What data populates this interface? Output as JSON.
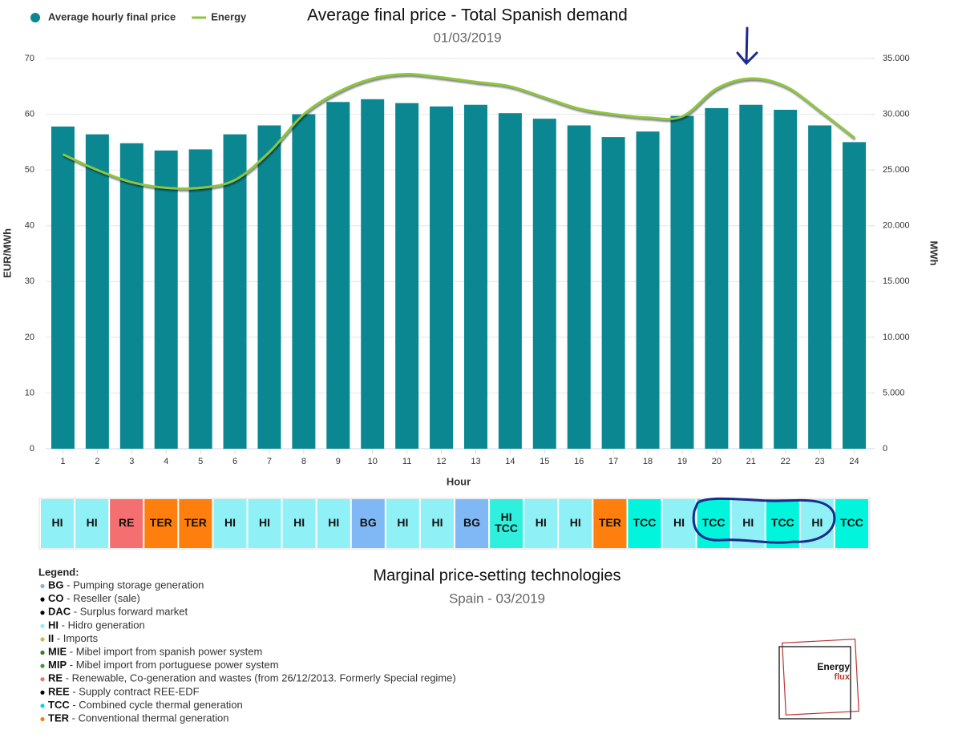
{
  "chart_data": {
    "type": "bar",
    "title": "Average final price - Total Spanish demand",
    "subtitle": "01/03/2019",
    "x_label": "Hour",
    "y_label": "EUR/MWh",
    "y2_label": "MWh",
    "categories": [
      "1",
      "2",
      "3",
      "4",
      "5",
      "6",
      "7",
      "8",
      "9",
      "10",
      "11",
      "12",
      "13",
      "14",
      "15",
      "16",
      "17",
      "18",
      "19",
      "20",
      "21",
      "22",
      "23",
      "24"
    ],
    "series": [
      {
        "name": "Average hourly final price",
        "type": "bar",
        "color": "#0b8791",
        "values": [
          57.8,
          56.4,
          54.8,
          53.5,
          53.7,
          56.4,
          58.0,
          60.0,
          62.2,
          62.7,
          62.0,
          61.4,
          61.7,
          60.2,
          59.2,
          58.0,
          55.9,
          56.9,
          59.7,
          61.1,
          61.7,
          60.8,
          58.0,
          55.0
        ]
      },
      {
        "name": "Energy",
        "type": "line",
        "axis": "y2",
        "color": "#8dc63f",
        "values": [
          26400,
          25000,
          23900,
          23400,
          23400,
          24100,
          26600,
          30000,
          32000,
          33200,
          33600,
          33300,
          32900,
          32500,
          31500,
          30500,
          30000,
          29700,
          29800,
          32300,
          33200,
          32500,
          30300,
          27900
        ]
      }
    ],
    "ylim": [
      0,
      70
    ],
    "yticks": [
      0,
      10,
      20,
      30,
      40,
      50,
      60,
      70
    ],
    "y2lim": [
      0,
      35000
    ],
    "y2ticks": [
      0,
      {
        "value": 5000,
        "label": "5.000"
      },
      {
        "value": 10000,
        "label": "10.000"
      },
      {
        "value": 15000,
        "label": "15.000"
      },
      {
        "value": 20000,
        "label": "20.000"
      },
      {
        "value": 25000,
        "label": "25.000"
      },
      {
        "value": 30000,
        "label": "30.000"
      },
      {
        "value": 35000,
        "label": "35.000"
      }
    ],
    "grid": true,
    "legend": "top-left"
  },
  "technologies": {
    "title": "Marginal price-setting technologies",
    "subtitle": "Spain - 03/2019",
    "cells": [
      {
        "label": [
          "HI"
        ],
        "color": "#8ff0f5"
      },
      {
        "label": [
          "HI"
        ],
        "color": "#8ff0f5"
      },
      {
        "label": [
          "RE"
        ],
        "color": "#f47070"
      },
      {
        "label": [
          "TER"
        ],
        "color": "#ff7f0e"
      },
      {
        "label": [
          "TER"
        ],
        "color": "#ff7f0e"
      },
      {
        "label": [
          "HI"
        ],
        "color": "#8ff0f5"
      },
      {
        "label": [
          "HI"
        ],
        "color": "#8ff0f5"
      },
      {
        "label": [
          "HI"
        ],
        "color": "#8ff0f5"
      },
      {
        "label": [
          "HI"
        ],
        "color": "#8ff0f5"
      },
      {
        "label": [
          "BG"
        ],
        "color": "#7fb8f5"
      },
      {
        "label": [
          "HI"
        ],
        "color": "#8ff0f5"
      },
      {
        "label": [
          "HI"
        ],
        "color": "#8ff0f5"
      },
      {
        "label": [
          "BG"
        ],
        "color": "#7fb8f5"
      },
      {
        "label": [
          "HI",
          "TCC"
        ],
        "color": "#2ff0dc"
      },
      {
        "label": [
          "HI"
        ],
        "color": "#8ff0f5"
      },
      {
        "label": [
          "HI"
        ],
        "color": "#8ff0f5"
      },
      {
        "label": [
          "TER"
        ],
        "color": "#ff7f0e"
      },
      {
        "label": [
          "TCC"
        ],
        "color": "#00f5dc"
      },
      {
        "label": [
          "HI"
        ],
        "color": "#8ff0f5"
      },
      {
        "label": [
          "TCC"
        ],
        "color": "#00f5dc"
      },
      {
        "label": [
          "HI"
        ],
        "color": "#8ff0f5"
      },
      {
        "label": [
          "TCC"
        ],
        "color": "#00f5dc"
      },
      {
        "label": [
          "HI"
        ],
        "color": "#8ff0f5"
      },
      {
        "label": [
          "TCC"
        ],
        "color": "#00f5dc"
      }
    ]
  },
  "legend": {
    "title": "Legend:",
    "items": [
      {
        "code": "BG",
        "text": "- Pumping storage generation",
        "color": "#7fb3e8"
      },
      {
        "code": "CO",
        "text": "- Reseller (sale)",
        "color": "#000000"
      },
      {
        "code": "DAC",
        "text": "- Surplus forward market",
        "color": "#000000"
      },
      {
        "code": "HI",
        "text": "- Hidro generation",
        "color": "#8ff0f5"
      },
      {
        "code": "II",
        "text": "- Imports",
        "color": "#b8c24a"
      },
      {
        "code": "MIE",
        "text": "- Mibel import from spanish power system",
        "color": "#2e7d32"
      },
      {
        "code": "MIP",
        "text": "- Mibel import from portuguese power system",
        "color": "#3c9a3c"
      },
      {
        "code": "RE",
        "text": "- Renewable, Co-generation and wastes (from 26/12/2013. Formerly Special regime)",
        "color": "#f47070"
      },
      {
        "code": "REE",
        "text": "- Supply contract REE-EDF",
        "color": "#000000"
      },
      {
        "code": "TCC",
        "text": "- Combined cycle thermal generation",
        "color": "#00d8e0"
      },
      {
        "code": "TER",
        "text": "- Conventional thermal generation",
        "color": "#ff7f0e"
      }
    ]
  },
  "logo": {
    "line1": "Energy",
    "line2": "flux"
  }
}
